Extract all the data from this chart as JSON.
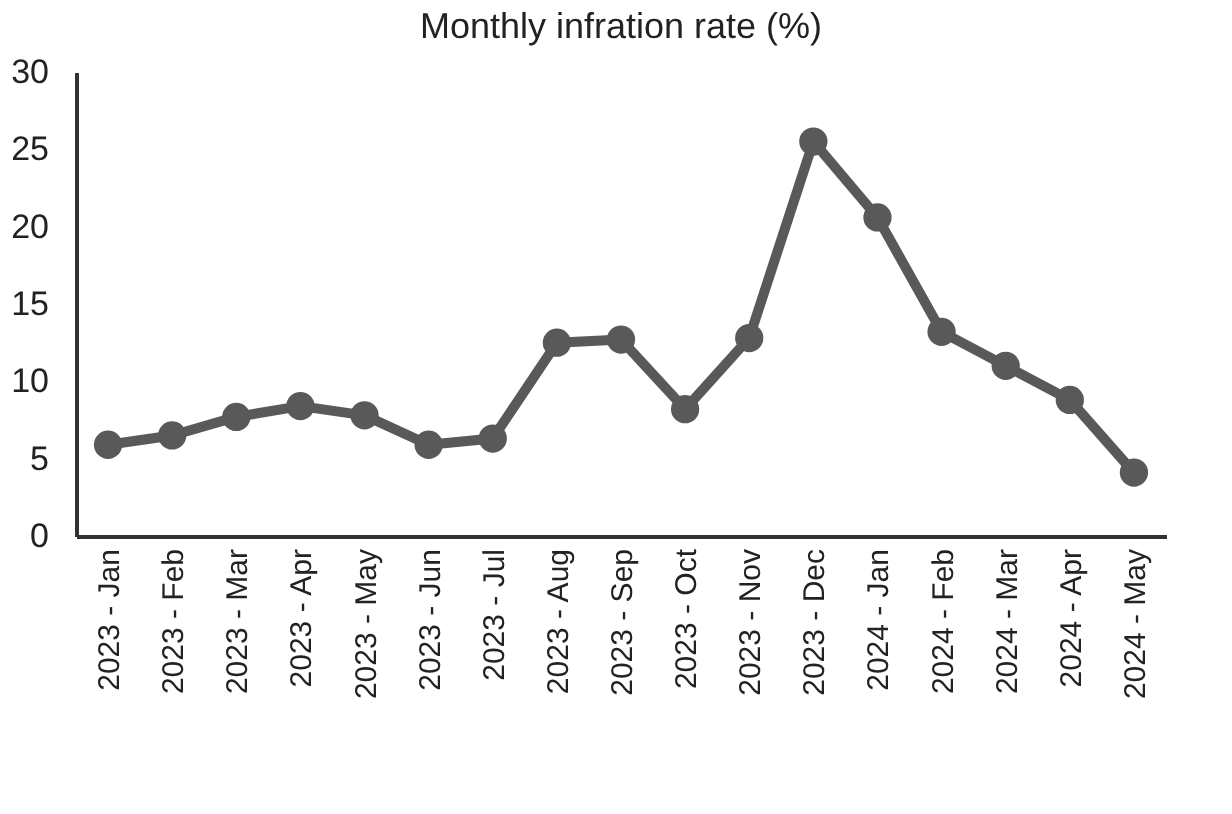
{
  "chart_data": {
    "type": "line",
    "title": "Monthly infration rate (%)",
    "categories": [
      "2023 - Jan",
      "2023 - Feb",
      "2023 - Mar",
      "2023 - Apr",
      "2023 - May",
      "2023 - Jun",
      "2023 - Jul",
      "2023 - Aug",
      "2023 - Sep",
      "2023 - Oct",
      "2023 - Nov",
      "2023 - Dec",
      "2024 - Jan",
      "2024 - Feb",
      "2024 - Mar",
      "2024 - Apr",
      "2024 - May"
    ],
    "series": [
      {
        "color": "#595959",
        "values": [
          5.9,
          6.5,
          7.7,
          8.4,
          7.8,
          5.9,
          6.3,
          12.5,
          12.7,
          8.2,
          12.8,
          25.5,
          20.6,
          13.2,
          11.0,
          8.8,
          4.1
        ]
      }
    ],
    "ylim": [
      0,
      30
    ],
    "yticks": [
      0,
      5,
      10,
      15,
      20,
      25,
      30
    ],
    "grid": false,
    "legend": false,
    "marker": "circle",
    "line_style": "solid"
  }
}
